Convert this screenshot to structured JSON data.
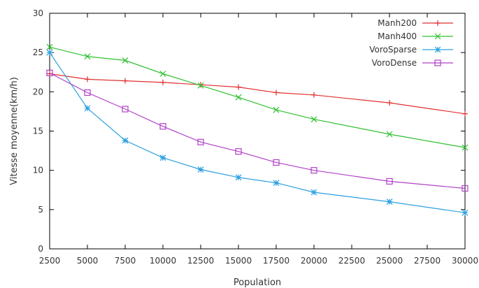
{
  "chart_data": {
    "type": "line",
    "title": "",
    "xlabel": "Population",
    "ylabel": "Vitesse moyenne(km/h)",
    "xlim": [
      2500,
      30000
    ],
    "ylim": [
      0,
      30
    ],
    "xticks": [
      2500,
      5000,
      7500,
      10000,
      12500,
      15000,
      17500,
      20000,
      22500,
      25000,
      27500,
      30000
    ],
    "yticks": [
      0,
      5,
      10,
      15,
      20,
      25,
      30
    ],
    "grid": false,
    "legend_position": "top-right",
    "series": [
      {
        "name": "Manh200",
        "color": "#e03030",
        "marker": "plus",
        "x": [
          2500,
          5000,
          7500,
          10000,
          12500,
          15000,
          17500,
          20000,
          25000,
          30000
        ],
        "y": [
          22.3,
          21.6,
          21.4,
          21.2,
          20.9,
          20.6,
          19.9,
          19.6,
          18.6,
          17.2
        ]
      },
      {
        "name": "Manh400",
        "color": "#2fc02f",
        "marker": "cross",
        "x": [
          2500,
          5000,
          7500,
          10000,
          12500,
          15000,
          17500,
          20000,
          25000,
          30000
        ],
        "y": [
          25.7,
          24.5,
          24.0,
          22.3,
          20.8,
          19.3,
          17.7,
          16.5,
          14.6,
          12.9
        ]
      },
      {
        "name": "VoroSparse",
        "color": "#2aa0e0",
        "marker": "star",
        "x": [
          2500,
          5000,
          7500,
          10000,
          12500,
          15000,
          17500,
          20000,
          25000,
          30000
        ],
        "y": [
          25.0,
          17.9,
          13.8,
          11.6,
          10.1,
          9.1,
          8.4,
          7.2,
          6.0,
          4.6
        ]
      },
      {
        "name": "VoroDense",
        "color": "#b040c8",
        "marker": "square",
        "x": [
          2500,
          5000,
          7500,
          10000,
          12500,
          15000,
          17500,
          20000,
          25000,
          30000
        ],
        "y": [
          22.4,
          19.9,
          17.8,
          15.6,
          13.6,
          12.4,
          11.0,
          10.0,
          8.6,
          7.7
        ]
      }
    ]
  }
}
